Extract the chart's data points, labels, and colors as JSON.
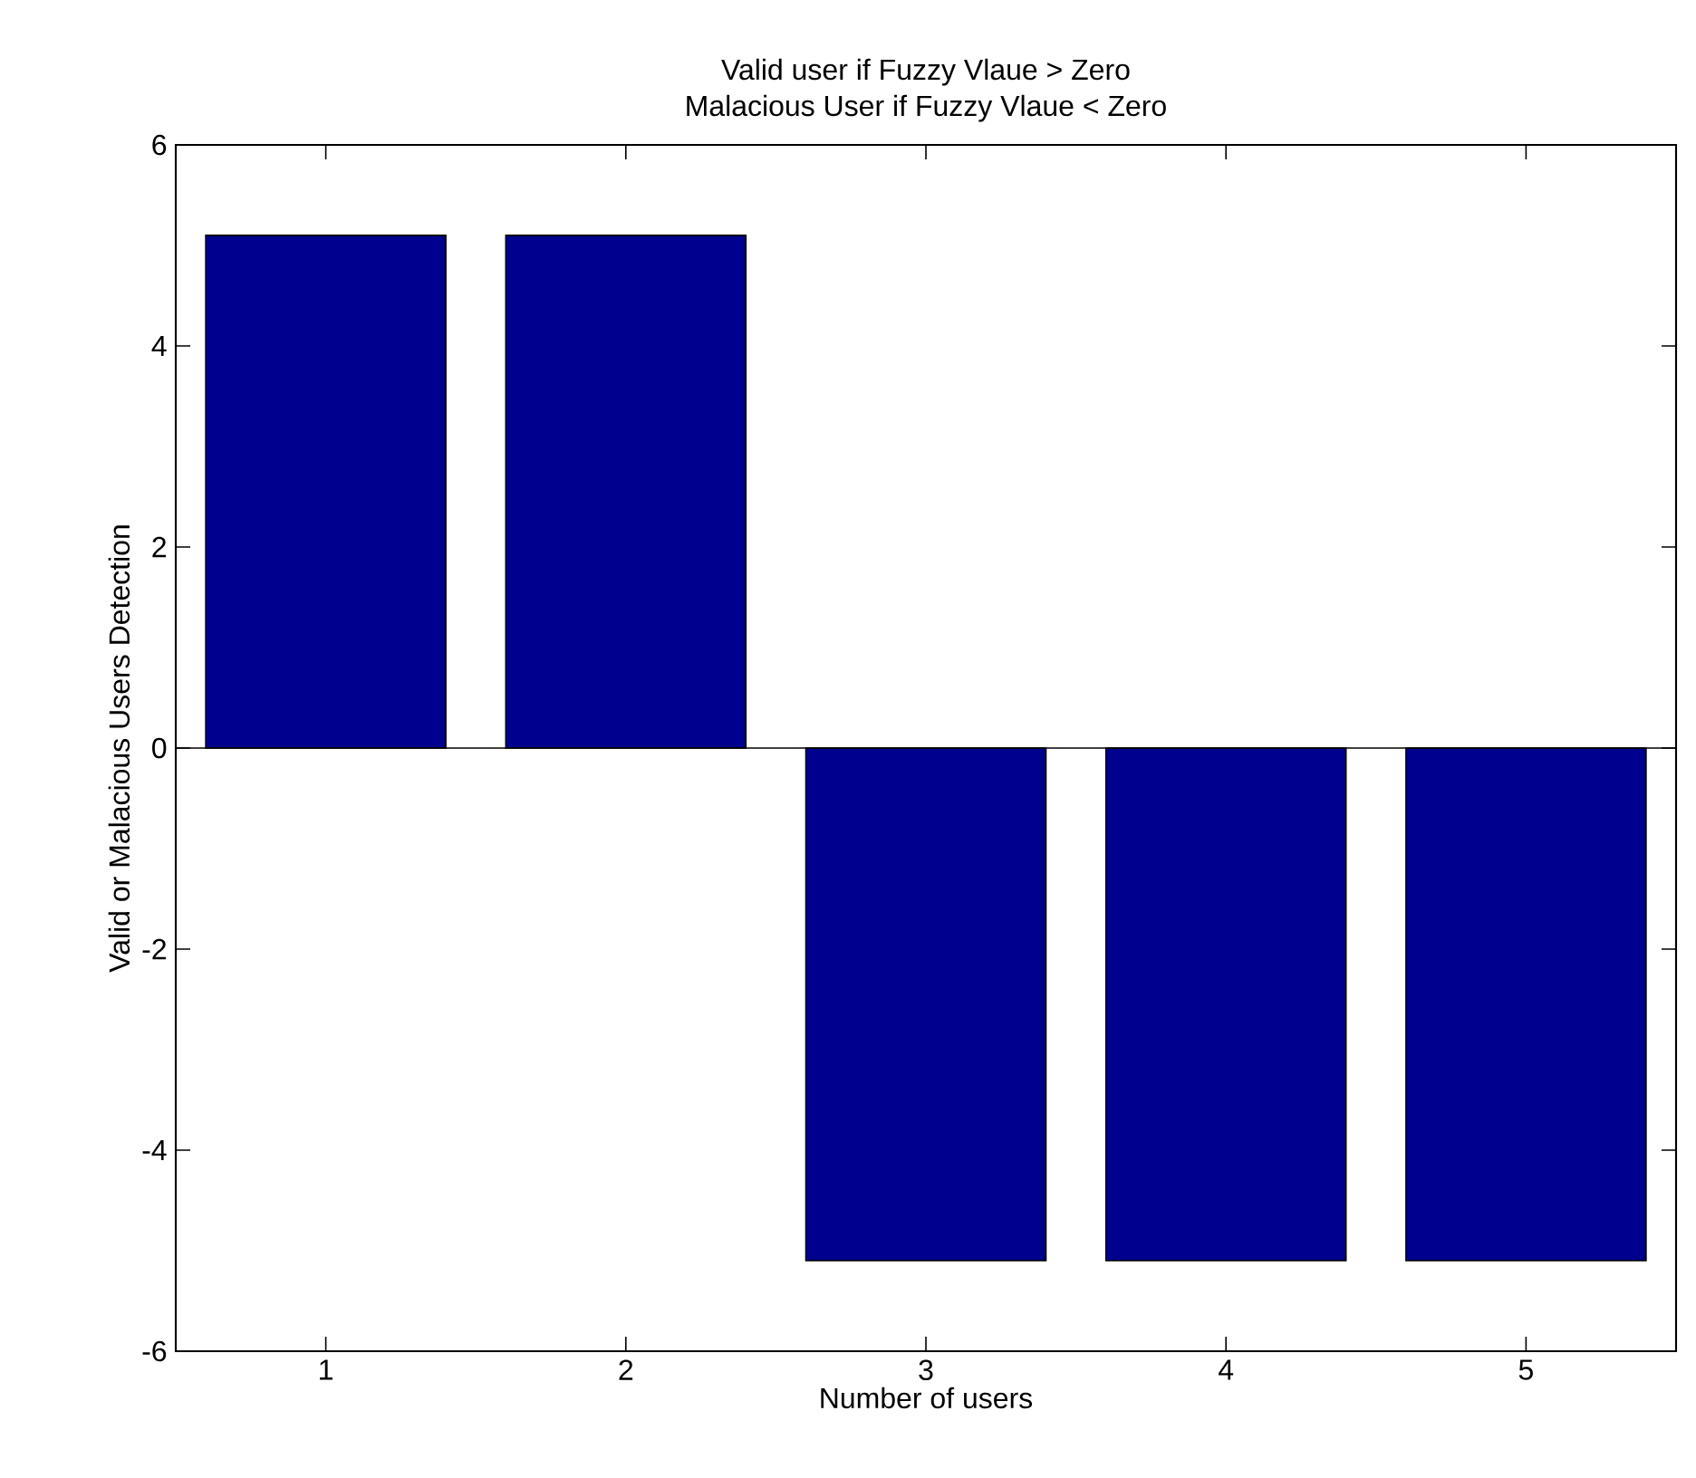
{
  "chart_data": {
    "type": "bar",
    "title": "Valid user if Fuzzy Vlaue > Zero",
    "subtitle": "Malacious User if Fuzzy Vlaue < Zero",
    "xlabel": "Number of users",
    "ylabel": "Valid or Malacious Users Detection",
    "x": [
      1,
      2,
      3,
      4,
      5
    ],
    "values": [
      5.1,
      5.1,
      -5.1,
      -5.1,
      -5.1
    ],
    "color": "#00008f",
    "xlim": [
      0.5,
      5.5
    ],
    "xticks": [
      1,
      2,
      3,
      4,
      5
    ],
    "ylim": [
      -6,
      6
    ],
    "yticks": [
      -6,
      -4,
      -2,
      0,
      2,
      4,
      6
    ],
    "ref_lines": [
      {
        "axis": "y",
        "value": 0,
        "color": "#000000"
      }
    ]
  }
}
